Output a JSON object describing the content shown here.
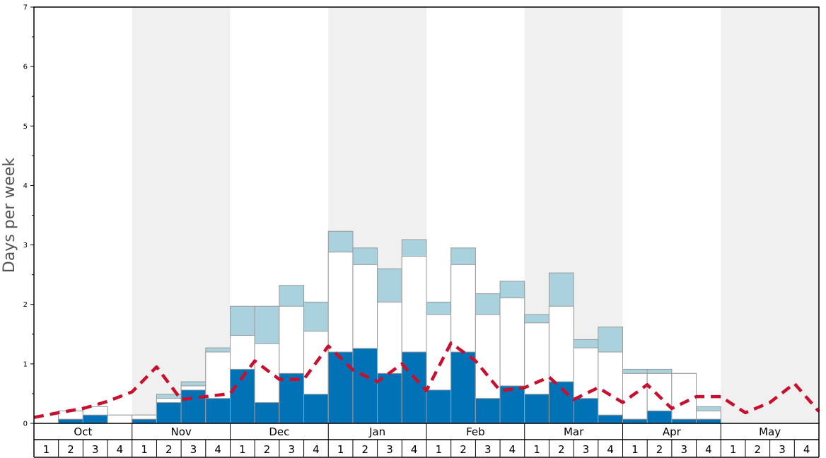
{
  "chart_data": {
    "type": "bar",
    "ylabel": "Days per week",
    "ylim": [
      0,
      7
    ],
    "yticks": [
      "0",
      "1",
      "2",
      "3",
      "4",
      "5",
      "6",
      "7"
    ],
    "months": [
      "Oct",
      "Nov",
      "Dec",
      "Jan",
      "Feb",
      "Mar",
      "Apr",
      "May"
    ],
    "weeks": [
      "1",
      "2",
      "3",
      "4"
    ],
    "shaded_months": [
      "Nov",
      "Jan",
      "Mar",
      "May"
    ],
    "colors": {
      "dark": "#0072b5",
      "white": "#ffffff",
      "light": "#a9d1de",
      "line": "#c8102e",
      "shade": "#f0f0f0"
    },
    "series": [
      {
        "values": [
          0,
          0.07,
          0.14,
          0,
          0.07,
          0.35,
          0.56,
          0.42,
          0.91,
          0.35,
          0.84,
          0.49,
          1.2,
          1.26,
          0.84,
          1.2,
          0.56,
          1.2,
          0.42,
          0.63,
          0.49,
          0.7,
          0.42,
          0.14,
          0.07,
          0.21,
          0.07,
          0.07,
          0,
          0,
          0,
          0
        ]
      },
      {
        "values": [
          0,
          0.21,
          0.28,
          0.14,
          0.14,
          0.42,
          0.63,
          1.2,
          1.48,
          1.34,
          1.97,
          1.55,
          2.88,
          2.67,
          2.04,
          2.81,
          1.83,
          2.67,
          1.83,
          2.11,
          1.69,
          1.97,
          1.27,
          1.2,
          0.84,
          0.84,
          0.84,
          0.21,
          0,
          0,
          0,
          0
        ]
      },
      {
        "values": [
          0,
          0.21,
          0.28,
          0.14,
          0.14,
          0.49,
          0.7,
          1.27,
          1.97,
          1.97,
          2.32,
          2.04,
          3.23,
          2.95,
          2.6,
          3.09,
          2.04,
          2.95,
          2.18,
          2.39,
          1.83,
          2.53,
          1.41,
          1.62,
          0.91,
          0.91,
          0.84,
          0.28,
          0,
          0,
          0,
          0
        ]
      },
      {
        "values": [
          0.1,
          0.18,
          0.25,
          0.37,
          0.53,
          0.95,
          0.4,
          0.45,
          0.5,
          1.05,
          0.74,
          0.74,
          1.3,
          0.9,
          0.7,
          1.0,
          0.55,
          1.35,
          1.05,
          0.55,
          0.6,
          0.78,
          0.4,
          0.6,
          0.35,
          0.65,
          0.25,
          0.45,
          0.45,
          0.18,
          0.35,
          0.67
        ]
      }
    ],
    "line_tail": 0.2
  }
}
